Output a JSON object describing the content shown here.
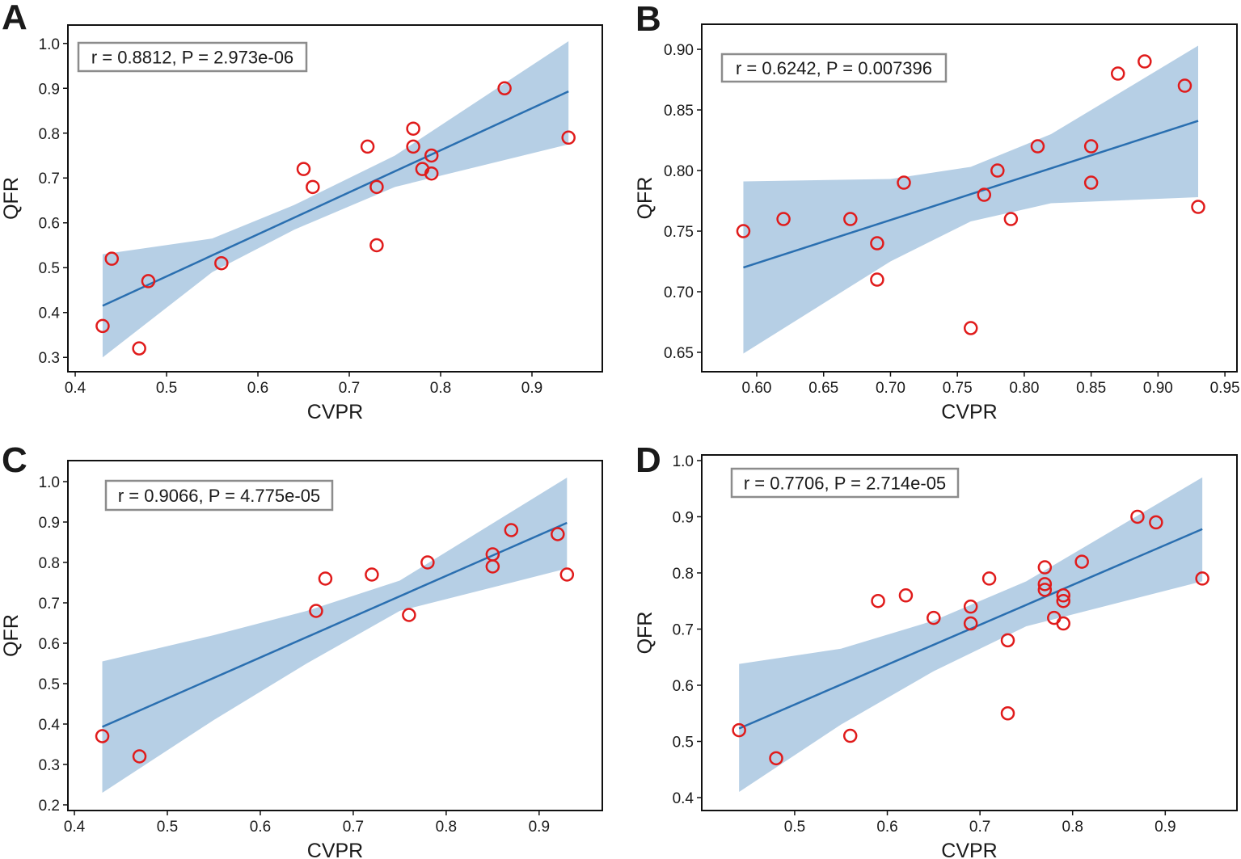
{
  "chart_data": [
    {
      "type": "scatter",
      "panel": "A",
      "xlabel": "CVPR",
      "ylabel": "QFR",
      "annotation": "r = 0.8812, P = 2.973e-06",
      "xlim": [
        0.392,
        0.977
      ],
      "ylim": [
        0.268,
        1.041
      ],
      "xticks": [
        0.4,
        0.5,
        0.6,
        0.7,
        0.8,
        0.9
      ],
      "xtick_labels": [
        "0.4",
        "0.5",
        "0.6",
        "0.7",
        "0.8",
        "0.9"
      ],
      "yticks": [
        0.3,
        0.4,
        0.5,
        0.6,
        0.7,
        0.8,
        0.9,
        1.0
      ],
      "ytick_labels": [
        "0.3",
        "0.4",
        "0.5",
        "0.6",
        "0.7",
        "0.8",
        "0.9",
        "1.0"
      ],
      "points": [
        [
          0.43,
          0.37
        ],
        [
          0.44,
          0.52
        ],
        [
          0.47,
          0.32
        ],
        [
          0.48,
          0.47
        ],
        [
          0.56,
          0.51
        ],
        [
          0.65,
          0.72
        ],
        [
          0.66,
          0.68
        ],
        [
          0.72,
          0.77
        ],
        [
          0.73,
          0.68
        ],
        [
          0.73,
          0.55
        ],
        [
          0.77,
          0.81
        ],
        [
          0.77,
          0.77
        ],
        [
          0.78,
          0.72
        ],
        [
          0.79,
          0.75
        ],
        [
          0.79,
          0.71
        ],
        [
          0.87,
          0.9
        ],
        [
          0.94,
          0.79
        ]
      ],
      "fit_line": [
        [
          0.43,
          0.415
        ],
        [
          0.94,
          0.893
        ]
      ],
      "ci_band": {
        "x": [
          0.43,
          0.55,
          0.64,
          0.75,
          0.94
        ],
        "lower": [
          0.3,
          0.49,
          0.585,
          0.68,
          0.775
        ],
        "upper": [
          0.53,
          0.565,
          0.64,
          0.75,
          1.005
        ]
      }
    },
    {
      "type": "scatter",
      "panel": "B",
      "xlabel": "CVPR",
      "ylabel": "QFR",
      "annotation": "r = 0.6242, P = 0.007396",
      "xlim": [
        0.5589,
        0.959
      ],
      "ylim": [
        0.634,
        0.9207
      ],
      "xticks": [
        0.6,
        0.65,
        0.7,
        0.75,
        0.8,
        0.85,
        0.9,
        0.95
      ],
      "xtick_labels": [
        "0.60",
        "0.65",
        "0.70",
        "0.75",
        "0.80",
        "0.85",
        "0.90",
        "0.95"
      ],
      "yticks": [
        0.65,
        0.7,
        0.75,
        0.8,
        0.85,
        0.9
      ],
      "ytick_labels": [
        "0.65",
        "0.70",
        "0.75",
        "0.80",
        "0.85",
        "0.90"
      ],
      "points": [
        [
          0.59,
          0.75
        ],
        [
          0.62,
          0.76
        ],
        [
          0.67,
          0.76
        ],
        [
          0.69,
          0.74
        ],
        [
          0.69,
          0.71
        ],
        [
          0.71,
          0.79
        ],
        [
          0.76,
          0.67
        ],
        [
          0.77,
          0.78
        ],
        [
          0.78,
          0.8
        ],
        [
          0.79,
          0.76
        ],
        [
          0.81,
          0.82
        ],
        [
          0.85,
          0.82
        ],
        [
          0.85,
          0.79
        ],
        [
          0.87,
          0.88
        ],
        [
          0.89,
          0.89
        ],
        [
          0.92,
          0.87
        ],
        [
          0.93,
          0.77
        ]
      ],
      "fit_line": [
        [
          0.59,
          0.72
        ],
        [
          0.93,
          0.841
        ]
      ],
      "ci_band": {
        "x": [
          0.59,
          0.7,
          0.76,
          0.82,
          0.93
        ],
        "lower": [
          0.649,
          0.725,
          0.758,
          0.773,
          0.778
        ],
        "upper": [
          0.791,
          0.793,
          0.803,
          0.83,
          0.903
        ]
      }
    },
    {
      "type": "scatter",
      "panel": "C",
      "xlabel": "CVPR",
      "ylabel": "QFR",
      "annotation": "r = 0.9066, P = 4.775e-05",
      "xlim": [
        0.393,
        0.968
      ],
      "ylim": [
        0.186,
        1.052
      ],
      "xticks": [
        0.4,
        0.5,
        0.6,
        0.7,
        0.8,
        0.9
      ],
      "xtick_labels": [
        "0.4",
        "0.5",
        "0.6",
        "0.7",
        "0.8",
        "0.9"
      ],
      "yticks": [
        0.2,
        0.3,
        0.4,
        0.5,
        0.6,
        0.7,
        0.8,
        0.9,
        1.0
      ],
      "ytick_labels": [
        "0.2",
        "0.3",
        "0.4",
        "0.5",
        "0.6",
        "0.7",
        "0.8",
        "0.9",
        "1.0"
      ],
      "points": [
        [
          0.43,
          0.37
        ],
        [
          0.47,
          0.32
        ],
        [
          0.66,
          0.68
        ],
        [
          0.67,
          0.76
        ],
        [
          0.72,
          0.77
        ],
        [
          0.76,
          0.67
        ],
        [
          0.78,
          0.8
        ],
        [
          0.85,
          0.82
        ],
        [
          0.85,
          0.79
        ],
        [
          0.87,
          0.88
        ],
        [
          0.92,
          0.87
        ],
        [
          0.93,
          0.77
        ]
      ],
      "fit_line": [
        [
          0.43,
          0.393
        ],
        [
          0.93,
          0.898
        ]
      ],
      "ci_band": {
        "x": [
          0.43,
          0.55,
          0.65,
          0.75,
          0.93
        ],
        "lower": [
          0.23,
          0.41,
          0.55,
          0.68,
          0.785
        ],
        "upper": [
          0.555,
          0.62,
          0.68,
          0.755,
          1.01
        ]
      }
    },
    {
      "type": "scatter",
      "panel": "D",
      "xlabel": "CVPR",
      "ylabel": "QFR",
      "annotation": "r = 0.7706, P = 2.714e-05",
      "xlim": [
        0.3997,
        0.9774
      ],
      "ylim": [
        0.377,
        1.01
      ],
      "xticks": [
        0.5,
        0.6,
        0.7,
        0.8,
        0.9
      ],
      "xtick_labels": [
        "0.5",
        "0.6",
        "0.7",
        "0.8",
        "0.9"
      ],
      "yticks": [
        0.4,
        0.5,
        0.6,
        0.7,
        0.8,
        0.9,
        1.0
      ],
      "ytick_labels": [
        "0.4",
        "0.5",
        "0.6",
        "0.7",
        "0.8",
        "0.9",
        "1.0"
      ],
      "points": [
        [
          0.44,
          0.52
        ],
        [
          0.48,
          0.47
        ],
        [
          0.56,
          0.51
        ],
        [
          0.59,
          0.75
        ],
        [
          0.62,
          0.76
        ],
        [
          0.65,
          0.72
        ],
        [
          0.69,
          0.74
        ],
        [
          0.69,
          0.71
        ],
        [
          0.71,
          0.79
        ],
        [
          0.73,
          0.68
        ],
        [
          0.73,
          0.55
        ],
        [
          0.77,
          0.81
        ],
        [
          0.77,
          0.78
        ],
        [
          0.77,
          0.77
        ],
        [
          0.79,
          0.76
        ],
        [
          0.79,
          0.75
        ],
        [
          0.78,
          0.72
        ],
        [
          0.79,
          0.71
        ],
        [
          0.81,
          0.82
        ],
        [
          0.87,
          0.9
        ],
        [
          0.89,
          0.89
        ],
        [
          0.94,
          0.79
        ]
      ],
      "fit_line": [
        [
          0.44,
          0.523
        ],
        [
          0.94,
          0.878
        ]
      ],
      "ci_band": {
        "x": [
          0.44,
          0.55,
          0.65,
          0.75,
          0.94
        ],
        "lower": [
          0.41,
          0.53,
          0.625,
          0.705,
          0.785
        ],
        "upper": [
          0.638,
          0.665,
          0.715,
          0.785,
          0.97
        ]
      }
    }
  ],
  "colors": {
    "points": "#e01b1b",
    "fit_line": "#2a6fb0",
    "ci_band": "#b6cfe5",
    "annotation_border": "#8c8c8c"
  }
}
